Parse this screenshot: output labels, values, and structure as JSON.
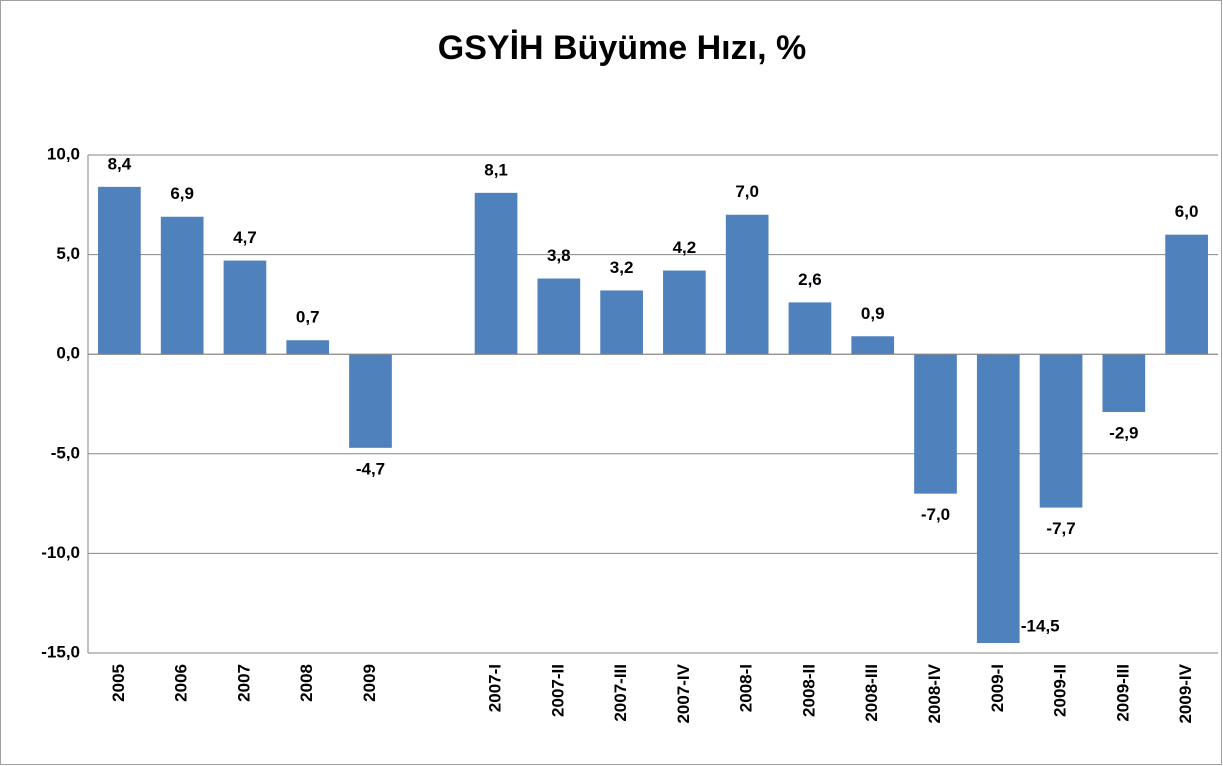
{
  "chart_data": {
    "type": "bar",
    "title": "GSYİH Büyüme Hızı, %",
    "categories": [
      "2005",
      "2006",
      "2007",
      "2008",
      "2009",
      null,
      "2007-I",
      "2007-II",
      "2007-III",
      "2007-IV",
      "2008-I",
      "2008-II",
      "2008-III",
      "2008-IV",
      "2009-I",
      "2009-II",
      "2009-III",
      "2009-IV"
    ],
    "values": [
      8.4,
      6.9,
      4.7,
      0.7,
      -4.7,
      null,
      8.1,
      3.8,
      3.2,
      4.2,
      7.0,
      2.6,
      0.9,
      -7.0,
      -14.5,
      -7.7,
      -2.9,
      6.0
    ],
    "value_labels": [
      "8,4",
      "6,9",
      "4,7",
      "0,7",
      "-4,7",
      null,
      "8,1",
      "3,8",
      "3,2",
      "4,2",
      "7,0",
      "2,6",
      "0,9",
      "-7,0",
      "-14,5",
      "-7,7",
      "-2,9",
      "6,0"
    ],
    "color": "#4f81bd",
    "ylim": [
      -15,
      10
    ],
    "yticks": [
      {
        "value": -15,
        "label": "-15,0"
      },
      {
        "value": -10,
        "label": "-10,0"
      },
      {
        "value": -5,
        "label": "-5,0"
      },
      {
        "value": 0,
        "label": "0,0"
      },
      {
        "value": 5,
        "label": "5,0"
      },
      {
        "value": 10,
        "label": "10,0"
      }
    ],
    "grid": true
  }
}
